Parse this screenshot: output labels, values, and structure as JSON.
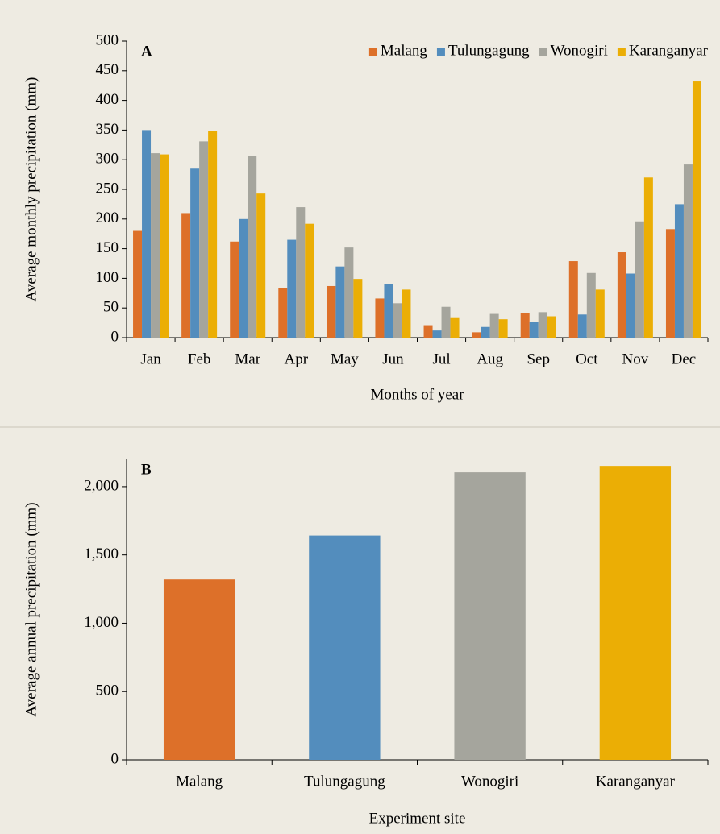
{
  "chart_data": [
    {
      "type": "bar",
      "panel_label": "A",
      "x_label": "Months of year",
      "y_label": "Average monthly precipitation (mm)",
      "categories": [
        "Jan",
        "Feb",
        "Mar",
        "Apr",
        "May",
        "Jun",
        "Jul",
        "Aug",
        "Sep",
        "Oct",
        "Nov",
        "Dec"
      ],
      "series": [
        {
          "name": "Malang",
          "color": "#dd7029",
          "values": [
            180,
            210,
            162,
            84,
            87,
            66,
            21,
            9,
            42,
            129,
            144,
            183
          ]
        },
        {
          "name": "Tulungagung",
          "color": "#538dbd",
          "values": [
            350,
            285,
            200,
            165,
            120,
            90,
            12,
            18,
            27,
            39,
            108,
            225
          ]
        },
        {
          "name": "Wonogiri",
          "color": "#a5a59d",
          "values": [
            311,
            331,
            307,
            220,
            152,
            58,
            52,
            40,
            43,
            109,
            196,
            292
          ]
        },
        {
          "name": "Karanganyar",
          "color": "#ebae05",
          "values": [
            309,
            348,
            243,
            192,
            99,
            81,
            33,
            31,
            36,
            81,
            270,
            432
          ]
        }
      ],
      "ylim": [
        0,
        500
      ],
      "yticks": [
        0,
        50,
        100,
        150,
        200,
        250,
        300,
        350,
        400,
        450,
        500
      ],
      "legend": "top-right"
    },
    {
      "type": "bar",
      "panel_label": "B",
      "x_label": "Experiment site",
      "y_label": "Average annual precipitation (mm)",
      "categories": [
        "Malang",
        "Tulungagung",
        "Wonogiri",
        "Karanganyar"
      ],
      "values": [
        1320,
        1642,
        2105,
        2152
      ],
      "colors": [
        "#dd7029",
        "#538dbd",
        "#a5a59d",
        "#ebae05"
      ],
      "ylim": [
        0,
        2200
      ],
      "yticks": [
        0,
        500,
        {
          "value": 1000,
          "label": "1,000"
        },
        {
          "value": 1500,
          "label": "1,500"
        },
        {
          "value": 2000,
          "label": "2,000"
        }
      ]
    }
  ]
}
